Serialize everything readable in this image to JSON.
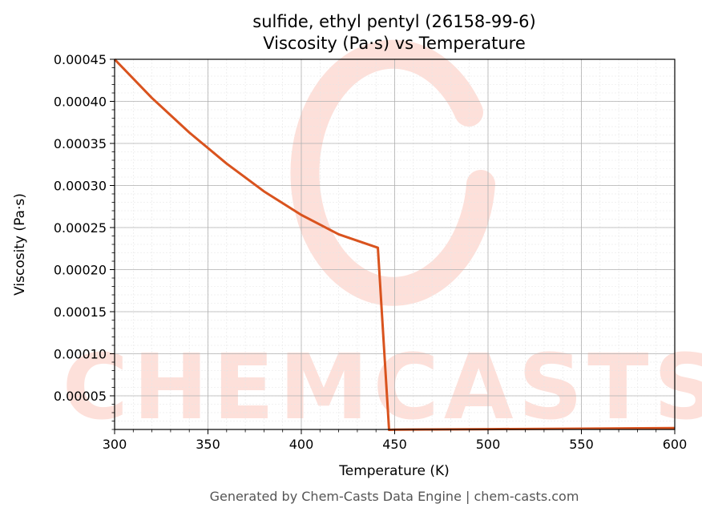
{
  "chart_data": {
    "type": "line",
    "title": "sulfide, ethyl pentyl (26158-99-6)",
    "subtitle": "Viscosity (Pa·s) vs Temperature",
    "xlabel": "Temperature (K)",
    "ylabel": "Viscosity (Pa·s)",
    "xlim": [
      300,
      600
    ],
    "ylim": [
      1e-05,
      0.00045
    ],
    "x_ticks": [
      "300",
      "350",
      "400",
      "450",
      "500",
      "550",
      "600"
    ],
    "y_ticks": [
      "0.00005",
      "0.00010",
      "0.00015",
      "0.00020",
      "0.00025",
      "0.00030",
      "0.00035",
      "0.00040",
      "0.00045"
    ],
    "grid": true,
    "series": [
      {
        "color": "#d9531e",
        "x": [
          300,
          320,
          340,
          360,
          380,
          400,
          420,
          441,
          447,
          450,
          500,
          550,
          600
        ],
        "y": [
          0.00045,
          0.000404,
          0.000363,
          0.000326,
          0.000293,
          0.000265,
          0.000242,
          0.000226,
          9.5e-06,
          9.8e-06,
          1.04e-05,
          1.1e-05,
          1.17e-05
        ]
      }
    ]
  },
  "watermark": {
    "text": "CHEMCASTS"
  },
  "footer": {
    "text": "Generated by Chem-Casts Data Engine | chem-casts.com"
  }
}
